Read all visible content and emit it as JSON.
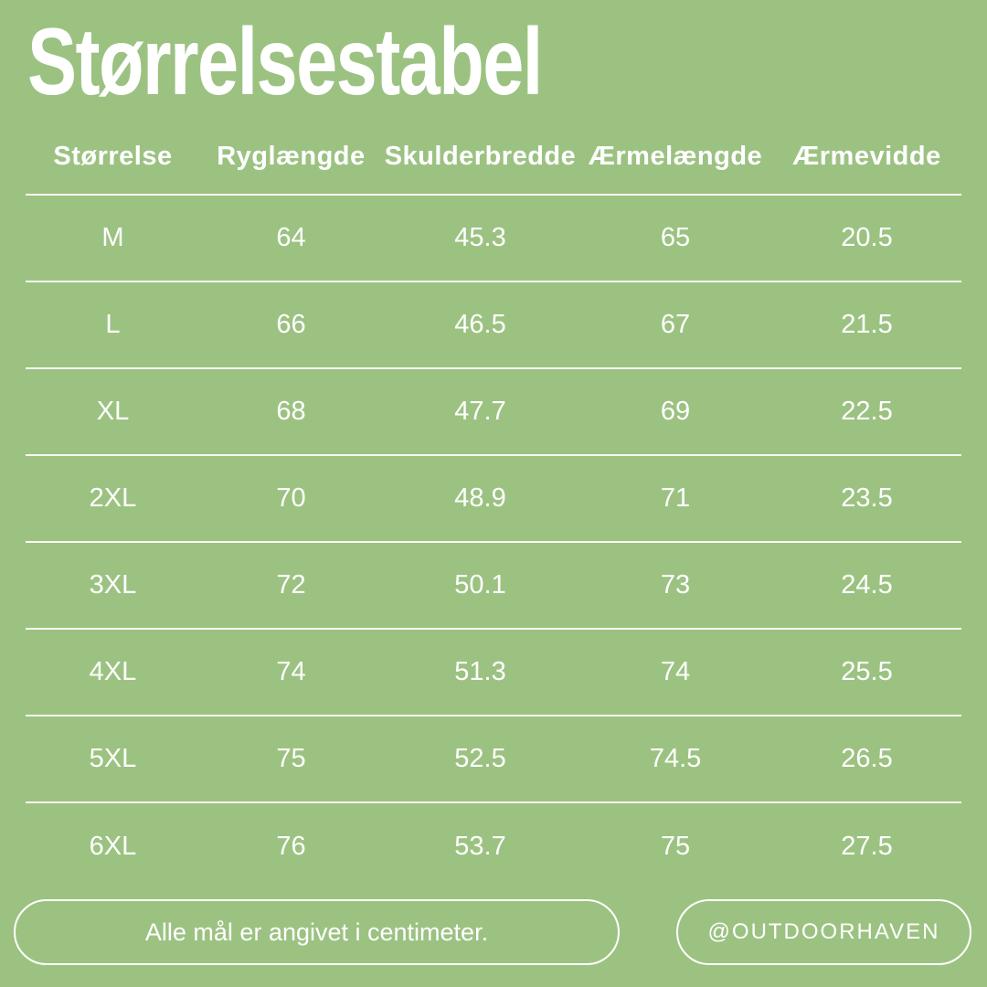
{
  "title": "Størrelsestabel",
  "colors": {
    "background": "#9cc282",
    "text": "#ffffff",
    "divider": "#ffffff"
  },
  "chart_data": {
    "type": "table",
    "title": "Størrelsestabel",
    "columns": [
      "Størrelse",
      "Ryglængde",
      "Skulderbredde",
      "Ærmelængde",
      "Ærmevidde"
    ],
    "rows": [
      [
        "M",
        "64",
        "45.3",
        "65",
        "20.5"
      ],
      [
        "L",
        "66",
        "46.5",
        "67",
        "21.5"
      ],
      [
        "XL",
        "68",
        "47.7",
        "69",
        "22.5"
      ],
      [
        "2XL",
        "70",
        "48.9",
        "71",
        "23.5"
      ],
      [
        "3XL",
        "72",
        "50.1",
        "73",
        "24.5"
      ],
      [
        "4XL",
        "74",
        "51.3",
        "74",
        "25.5"
      ],
      [
        "5XL",
        "75",
        "52.5",
        "74.5",
        "26.5"
      ],
      [
        "6XL",
        "76",
        "53.7",
        "75",
        "27.5"
      ]
    ]
  },
  "footer": {
    "note": "Alle mål er angivet i centimeter.",
    "handle": "@OUTDOORHAVEN"
  }
}
